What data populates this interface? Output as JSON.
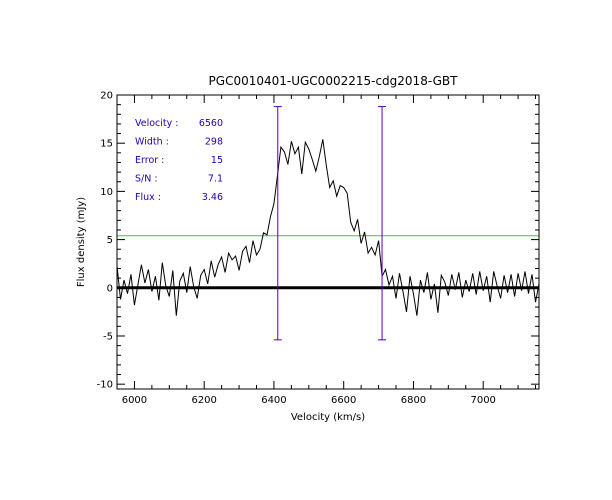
{
  "chart_data": {
    "type": "line",
    "title": "PGC0010401-UGC0002215-cdg2018-GBT",
    "xlabel": "Velocity (km/s)",
    "ylabel": "Flux density (mJy)",
    "xlim": [
      5950,
      7160
    ],
    "ylim": [
      -10.5,
      20
    ],
    "x_ticks": [
      6000,
      6200,
      6400,
      6600,
      6800,
      7000
    ],
    "y_ticks": [
      -10,
      -5,
      0,
      5,
      10,
      15,
      20
    ],
    "grid": false,
    "zero_line": 0,
    "threshold_line": 5.4,
    "velocity_markers": [
      {
        "velocity": 6411,
        "ymin": -5.4,
        "ymax": 18.8
      },
      {
        "velocity": 6710,
        "ymin": -5.4,
        "ymax": 18.8
      }
    ],
    "annotations": [
      {
        "label": "Velocity :",
        "value": "6560"
      },
      {
        "label": "Width :",
        "value": "298"
      },
      {
        "label": "Error :",
        "value": "15"
      },
      {
        "label": "S/N :",
        "value": "7.1"
      },
      {
        "label": "Flux :",
        "value": "3.46"
      }
    ],
    "series": [
      {
        "x": [
          5950,
          5960,
          5970,
          5980,
          5990,
          6000,
          6010,
          6020,
          6030,
          6040,
          6050,
          6060,
          6070,
          6080,
          6090,
          6100,
          6110,
          6120,
          6130,
          6140,
          6150,
          6160,
          6170,
          6180,
          6190,
          6200,
          6210,
          6220,
          6230,
          6240,
          6250,
          6260,
          6270,
          6280,
          6290,
          6300,
          6310,
          6320,
          6330,
          6340,
          6350,
          6360,
          6370,
          6380,
          6390,
          6400,
          6410,
          6420,
          6430,
          6440,
          6450,
          6460,
          6470,
          6480,
          6490,
          6500,
          6510,
          6520,
          6530,
          6540,
          6550,
          6560,
          6570,
          6580,
          6590,
          6600,
          6610,
          6620,
          6630,
          6640,
          6650,
          6660,
          6670,
          6680,
          6690,
          6700,
          6710,
          6720,
          6730,
          6740,
          6750,
          6760,
          6770,
          6780,
          6790,
          6800,
          6810,
          6820,
          6830,
          6840,
          6850,
          6860,
          6870,
          6880,
          6890,
          6900,
          6910,
          6920,
          6930,
          6940,
          6950,
          6960,
          6970,
          6980,
          6990,
          7000,
          7010,
          7020,
          7030,
          7040,
          7050,
          7060,
          7070,
          7080,
          7090,
          7100,
          7110,
          7120,
          7130,
          7140,
          7150,
          7160
        ],
        "y": [
          2.3,
          -1.2,
          0.8,
          -0.6,
          1.4,
          -1.8,
          0.3,
          2.4,
          0.5,
          1.9,
          -0.4,
          1.2,
          -1.3,
          2.6,
          0.2,
          -0.9,
          1.8,
          -2.9,
          0.7,
          1.5,
          -0.5,
          2.2,
          0.1,
          -1.1,
          1.3,
          1.9,
          0.4,
          2.8,
          1.1,
          2.4,
          3.2,
          1.6,
          3.6,
          2.9,
          3.3,
          1.8,
          3.8,
          4.3,
          2.6,
          4.9,
          3.4,
          4.0,
          5.7,
          5.5,
          7.4,
          8.7,
          11.6,
          14.6,
          14.1,
          12.8,
          15.2,
          13.9,
          14.6,
          11.8,
          15.1,
          14.4,
          13.3,
          12.1,
          13.6,
          15.4,
          12.7,
          10.4,
          11.1,
          9.5,
          10.6,
          10.4,
          9.8,
          6.8,
          5.9,
          7.1,
          4.6,
          5.8,
          3.6,
          4.2,
          3.4,
          4.9,
          1.2,
          1.9,
          0.3,
          1.2,
          -1.1,
          1.5,
          -0.4,
          -2.5,
          1.2,
          -0.6,
          -2.9,
          0.8,
          -0.5,
          1.6,
          -1.2,
          0.4,
          -2.6,
          1.3,
          0.6,
          -0.8,
          1.4,
          -0.2,
          1.6,
          -1.0,
          0.8,
          -0.4,
          1.5,
          -0.7,
          1.7,
          -0.3,
          1.2,
          -1.5,
          1.7,
          0.2,
          -1.1,
          1.3,
          -0.5,
          1.4,
          -0.9,
          1.5,
          -0.3,
          1.7,
          -0.6,
          1.4,
          -1.5,
          0.4
        ]
      }
    ]
  }
}
